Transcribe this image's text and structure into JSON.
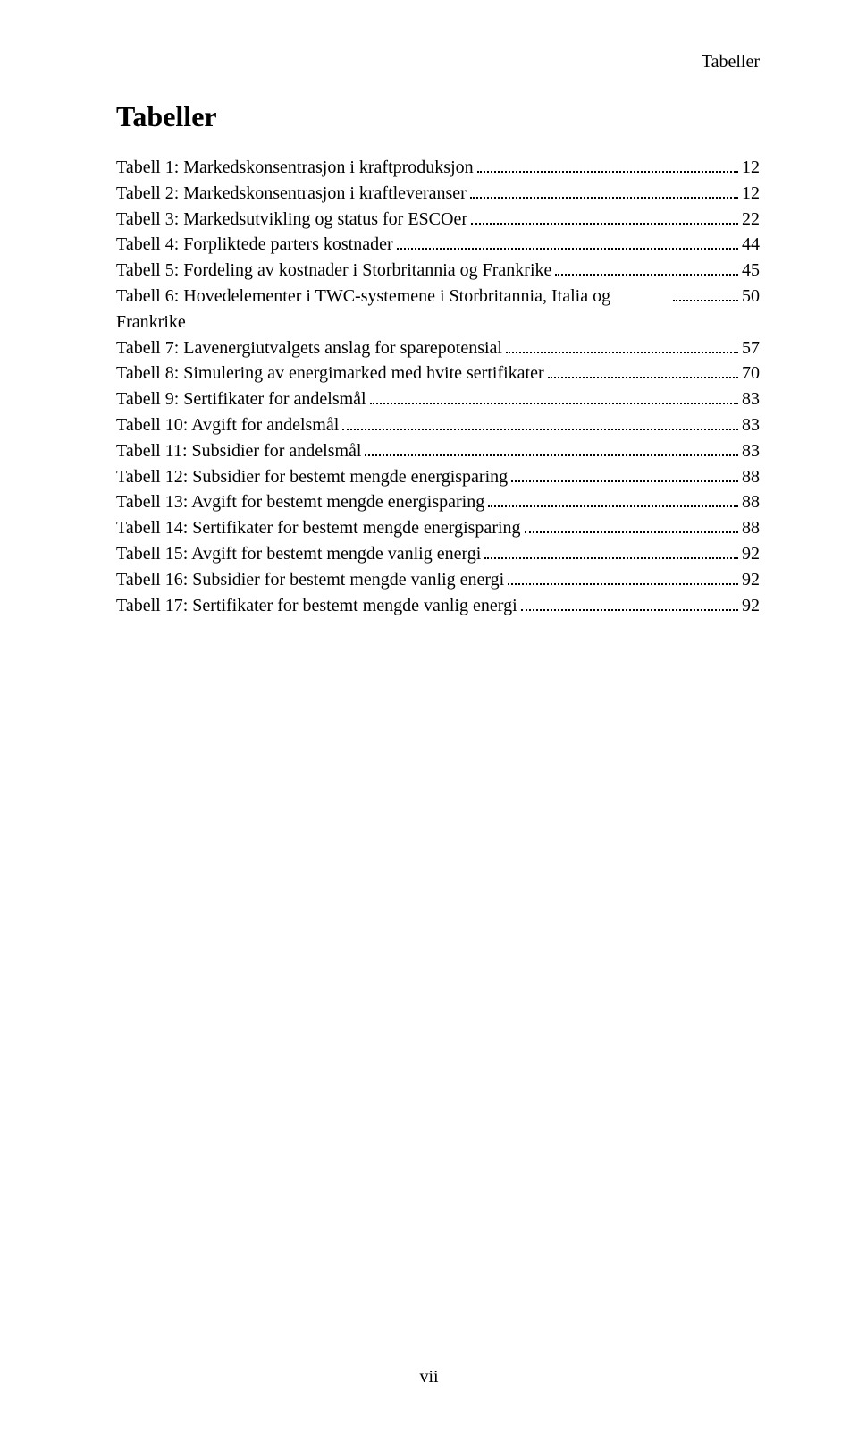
{
  "running_head": "Tabeller",
  "heading": "Tabeller",
  "page_number": "vii",
  "entries": [
    {
      "label": "Tabell 1: Markedskonsentrasjon i kraftproduksjon",
      "page": "12"
    },
    {
      "label": "Tabell 2: Markedskonsentrasjon i kraftleveranser",
      "page": "12"
    },
    {
      "label": "Tabell 3: Markedsutvikling og status for ESCOer",
      "page": "22"
    },
    {
      "label": "Tabell 4: Forpliktede parters kostnader",
      "page": "44"
    },
    {
      "label": "Tabell 5: Fordeling av kostnader i Storbritannia og Frankrike",
      "page": "45"
    },
    {
      "label": "Tabell 6: Hovedelementer i TWC-systemene i Storbritannia, Italia og Frankrike",
      "page": "50"
    },
    {
      "label": "Tabell 7: Lavenergiutvalgets anslag for sparepotensial",
      "page": "57"
    },
    {
      "label": "Tabell 8: Simulering av energimarked med hvite sertifikater",
      "page": "70"
    },
    {
      "label": "Tabell 9: Sertifikater for andelsmål",
      "page": "83"
    },
    {
      "label": "Tabell 10: Avgift for andelsmål",
      "page": "83"
    },
    {
      "label": "Tabell 11: Subsidier for andelsmål",
      "page": "83"
    },
    {
      "label": "Tabell 12: Subsidier for bestemt mengde energisparing",
      "page": "88"
    },
    {
      "label": "Tabell 13: Avgift for bestemt mengde energisparing",
      "page": "88"
    },
    {
      "label": "Tabell 14: Sertifikater for bestemt mengde energisparing",
      "page": "88"
    },
    {
      "label": "Tabell 15: Avgift for bestemt mengde vanlig energi",
      "page": "92"
    },
    {
      "label": "Tabell 16: Subsidier for bestemt mengde vanlig energi",
      "page": "92"
    },
    {
      "label": "Tabell 17: Sertifikater for bestemt mengde vanlig energi",
      "page": "92"
    }
  ]
}
